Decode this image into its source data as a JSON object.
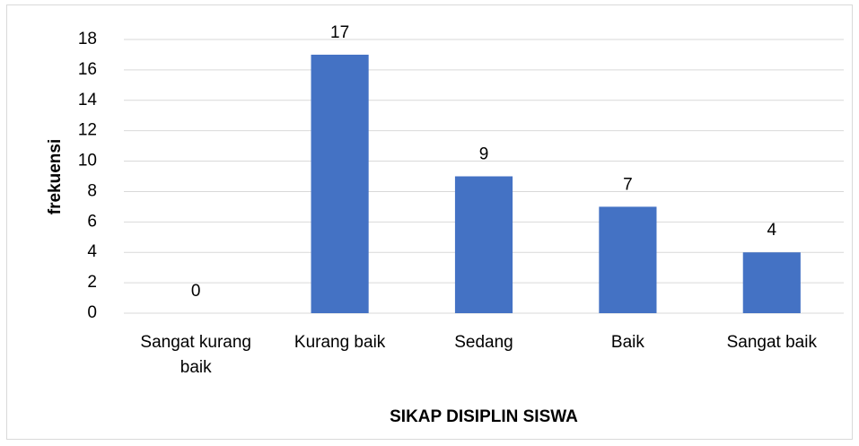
{
  "chart_data": {
    "type": "bar",
    "categories": [
      "Sangat kurang baik",
      "Kurang baik",
      "Sedang",
      "Baik",
      "Sangat baik"
    ],
    "values": [
      0,
      17,
      9,
      7,
      4
    ],
    "color": "#4472c4",
    "xlabel": "SIKAP DISIPLIN SISWA",
    "ylabel": "frekuensi",
    "ylim": [
      0,
      18
    ],
    "yticks": [
      0,
      2,
      4,
      6,
      8,
      10,
      12,
      14,
      16,
      18
    ],
    "grid": true
  }
}
